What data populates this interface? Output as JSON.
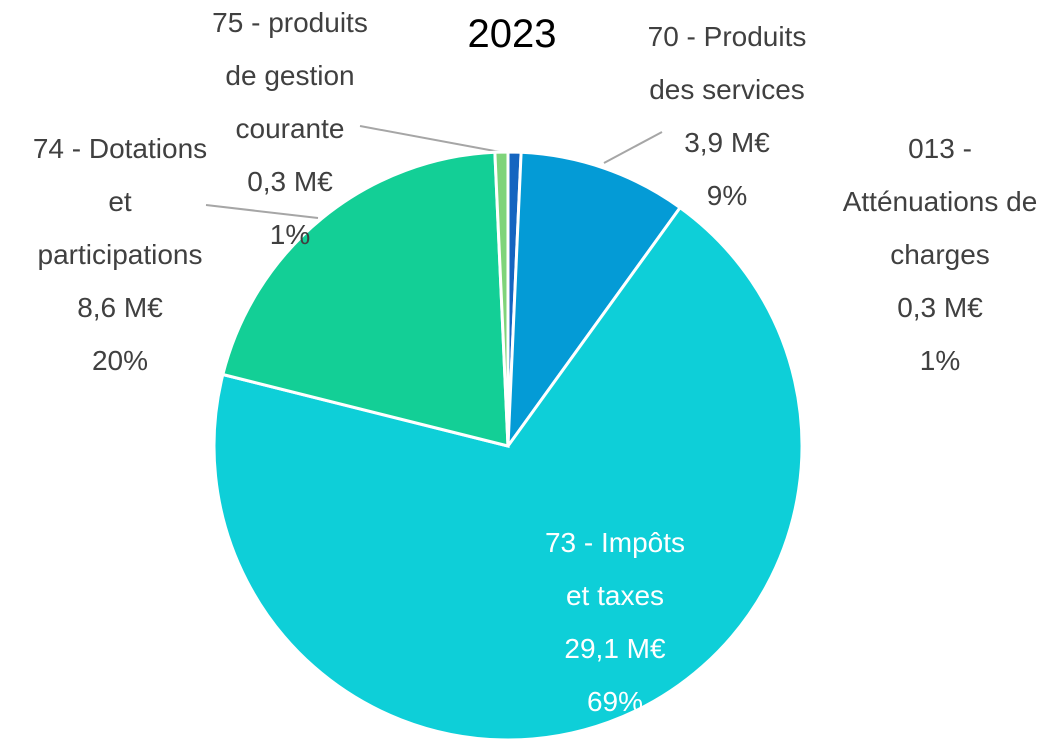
{
  "chart_data": {
    "type": "pie",
    "title": "2023",
    "categories": [
      "013 - Atténuations de charges",
      "70 - Produits des services",
      "73 - Impôts et taxes",
      "74 - Dotations et participations",
      "75 - produits de gestion courante"
    ],
    "values": [
      0.3,
      3.9,
      29.1,
      8.6,
      0.3
    ],
    "value_labels": [
      "0,3 M€",
      "3,9 M€",
      "29,1 M€",
      "8,6 M€",
      "0,3 M€"
    ],
    "percent_labels": [
      "1%",
      "9%",
      "69%",
      "20%",
      "1%"
    ],
    "colors": [
      "#1565c0",
      "#049bd6",
      "#0ecfd8",
      "#13cf96",
      "#7fd47a"
    ]
  }
}
